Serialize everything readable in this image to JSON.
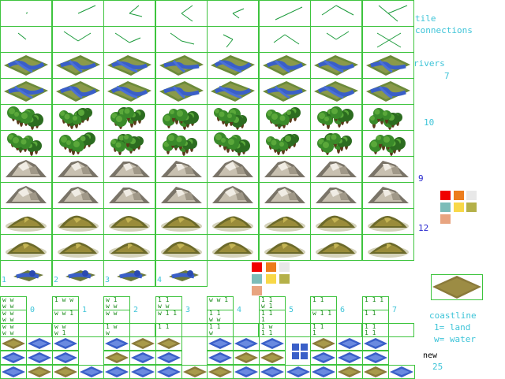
{
  "side_labels": {
    "tile": "tile",
    "connections": "connections",
    "rivers": "rivers",
    "rivers_count": "7",
    "forest_count": "10",
    "hills_count": "9",
    "mountains_count": "12",
    "coastline": "coastline",
    "legend_land": "1= land",
    "legend_water": "w= water",
    "new": "new",
    "new_count": "25"
  },
  "special_numbers": [
    "1",
    "2",
    "3",
    "4"
  ],
  "coast_numbers": [
    "0",
    "1",
    "2",
    "3",
    "4",
    "5",
    "6",
    "7"
  ],
  "palette": {
    "grid": "#3ec43e",
    "red": "#f00000",
    "orange": "#ec7c1c",
    "light_gray": "#e8e8e8",
    "teal": "#7cbcb8",
    "yellow": "#f8d848",
    "olive": "#b4b048",
    "salmon": "#e8a480",
    "water": "#3a5fc8",
    "land": "#8a7a3a",
    "forest": "#2c6c20",
    "mountain": "#c8c0b0"
  },
  "rows": [
    "connections",
    "connections",
    "rivers",
    "rivers",
    "forest",
    "forest",
    "mountains",
    "mountains",
    "hills",
    "hills",
    "specials"
  ]
}
